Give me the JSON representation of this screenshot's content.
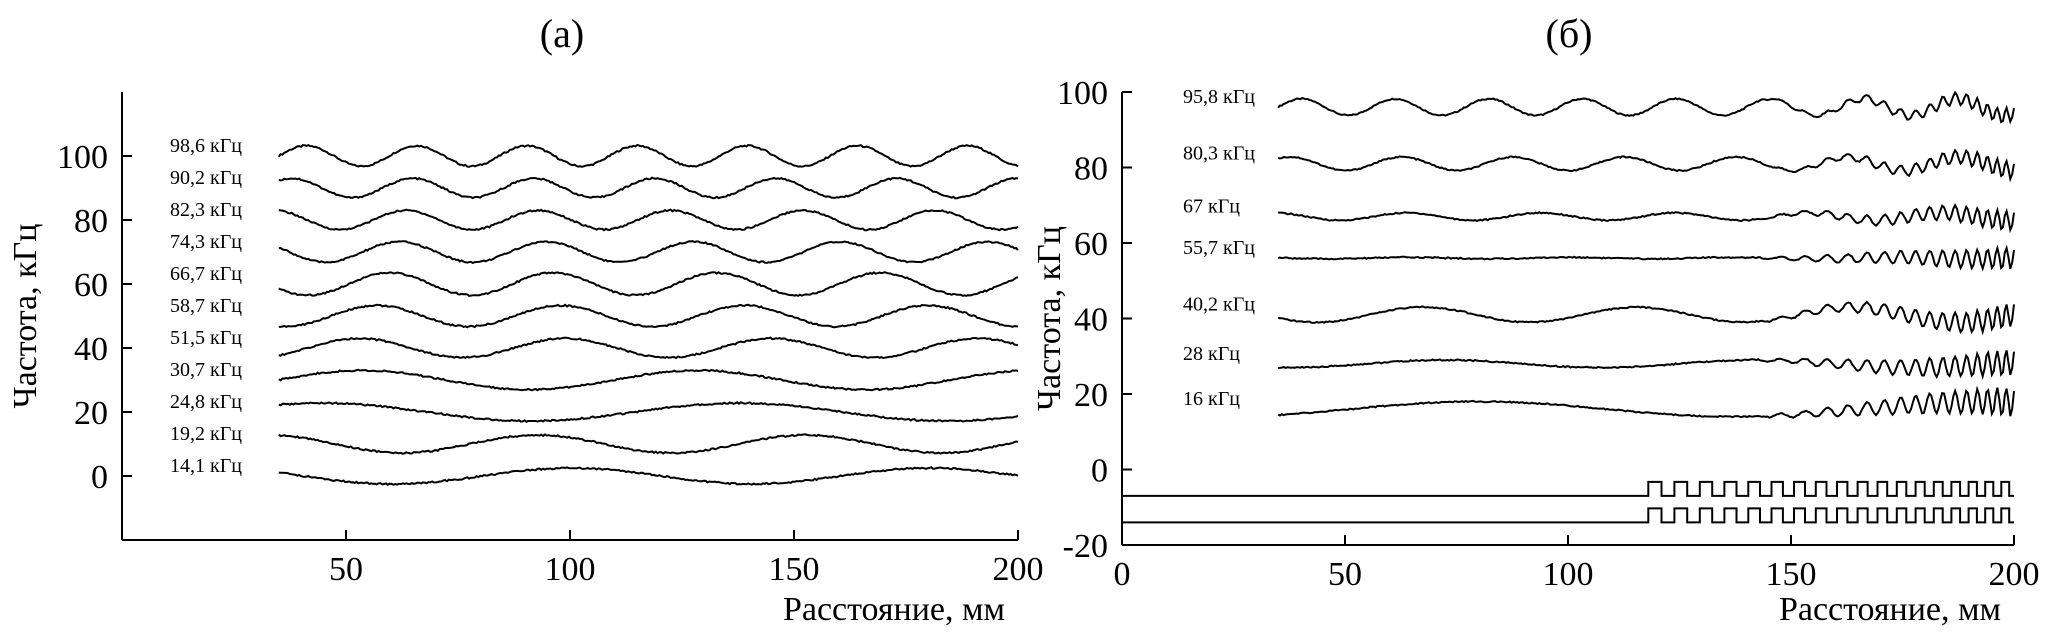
{
  "chart_data": [
    {
      "type": "line",
      "panel_label": "(а)",
      "xlabel": "Расстояние, мм",
      "ylabel": "Частота, кГц",
      "xlim": [
        0,
        200
      ],
      "ylim": [
        -20,
        120
      ],
      "xticks": [
        50,
        100,
        150,
        200
      ],
      "yticks": [
        0,
        20,
        40,
        60,
        80,
        100
      ],
      "x_range": [
        35,
        200
      ],
      "grid": false,
      "series": [
        {
          "name": "98,6 кГц",
          "baseline": 100,
          "amplitude": 3.2,
          "wavelength": 24.6
        },
        {
          "name": "90,2 кГц",
          "baseline": 90,
          "amplitude": 3.0,
          "wavelength": 27.0
        },
        {
          "name": "82,3 кГц",
          "baseline": 80,
          "amplitude": 3.0,
          "wavelength": 29.5
        },
        {
          "name": "74,3 кГц",
          "baseline": 70,
          "amplitude": 3.2,
          "wavelength": 32.8
        },
        {
          "name": "66,7 кГц",
          "baseline": 60,
          "amplitude": 3.5,
          "wavelength": 36.5
        },
        {
          "name": "58,7 кГц",
          "baseline": 50,
          "amplitude": 3.3,
          "wavelength": 41.0
        },
        {
          "name": "51,5 кГц",
          "baseline": 40,
          "amplitude": 3.0,
          "wavelength": 46.0
        },
        {
          "name": "30,7 кГц",
          "baseline": 30,
          "amplitude": 3.0,
          "wavelength": 75.0
        },
        {
          "name": "24,8 кГц",
          "baseline": 20,
          "amplitude": 2.8,
          "wavelength": 93.0
        },
        {
          "name": "19,2 кГц",
          "baseline": 10,
          "amplitude": 2.8,
          "wavelength": 60.0
        },
        {
          "name": "14,1 кГц",
          "baseline": 0,
          "amplitude": 2.5,
          "wavelength": 80.0
        }
      ]
    },
    {
      "type": "line",
      "panel_label": "(б)",
      "xlabel": "Расстояние, мм",
      "ylabel": "Частота, кГц",
      "xlim": [
        0,
        200
      ],
      "ylim": [
        -20,
        100
      ],
      "xticks": [
        0,
        50,
        100,
        150,
        200
      ],
      "yticks": [
        -20,
        0,
        20,
        40,
        60,
        80,
        100
      ],
      "x_range": [
        35,
        200
      ],
      "grid": false,
      "series": [
        {
          "name": "95,8 кГц",
          "baseline": 96,
          "amplitude": 2.2,
          "wavelength": 21.0
        },
        {
          "name": "80,3 кГц",
          "baseline": 81,
          "amplitude": 1.8,
          "wavelength": 25.0
        },
        {
          "name": "67 кГц",
          "baseline": 67,
          "amplitude": 1.0,
          "wavelength": 30.0
        },
        {
          "name": "55,7 кГц",
          "baseline": 56,
          "amplitude": 0.2,
          "wavelength": 36.0
        },
        {
          "name": "40,2 кГц",
          "baseline": 41,
          "amplitude": 2.0,
          "wavelength": 48.0
        },
        {
          "name": "28 кГц",
          "baseline": 28,
          "amplitude": 1.0,
          "wavelength": 70.0
        },
        {
          "name": "16 кГц",
          "baseline": 16,
          "amplitude": 2.0,
          "wavelength": 115.0
        }
      ],
      "pattern_lines": [
        {
          "baseline": -7,
          "start": 0,
          "grating_start": 115,
          "end": 200
        },
        {
          "baseline": -14,
          "start": 0,
          "grating_start": 115,
          "end": 200
        }
      ]
    }
  ]
}
